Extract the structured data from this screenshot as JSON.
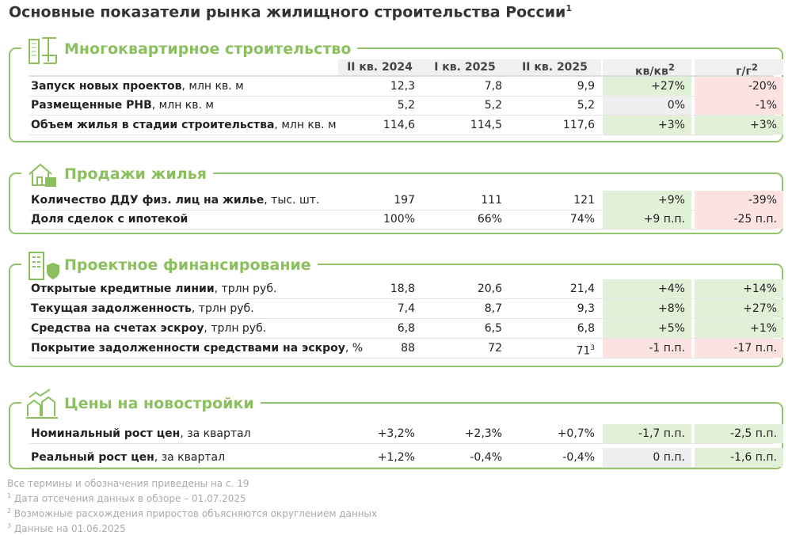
{
  "title": "Основные показатели рынка жилищного строительства России",
  "title_sup": "1",
  "columns": [
    "II кв. 2024",
    "I кв. 2025",
    "II кв. 2025",
    "кв/кв",
    "г/г"
  ],
  "col_sup": "2",
  "sections": [
    {
      "title": "Многоквартирное строительство",
      "icon": "building-crane-icon",
      "rows": [
        {
          "label": "Запуск новых проектов",
          "unit": ", млн кв. м",
          "v": [
            "12,3",
            "7,8",
            "9,9",
            "+27%",
            "-20%"
          ],
          "colors": [
            "green",
            "red"
          ]
        },
        {
          "label": "Размещенные РНВ",
          "unit": ", млн кв. м",
          "v": [
            "5,2",
            "5,2",
            "5,2",
            "0%",
            "-1%"
          ],
          "colors": [
            "gray",
            "red"
          ]
        },
        {
          "label": "Объем жилья в стадии строительства",
          "unit": ", млн кв. м",
          "v": [
            "114,6",
            "114,5",
            "117,6",
            "+3%",
            "+3%"
          ],
          "colors": [
            "green",
            "green"
          ]
        }
      ]
    },
    {
      "title": "Продажи жилья",
      "icon": "house-money-icon",
      "rows": [
        {
          "label": "Количество ДДУ физ. лиц на жилье",
          "unit": ", тыс. шт.",
          "v": [
            "197",
            "111",
            "121",
            "+9%",
            "-39%"
          ],
          "colors": [
            "green",
            "red"
          ]
        },
        {
          "label": "Доля сделок с ипотекой",
          "unit": "",
          "v": [
            "100%",
            "66%",
            "74%",
            "+9 п.п.",
            "-25 п.п."
          ],
          "colors": [
            "green",
            "red"
          ]
        }
      ]
    },
    {
      "title": "Проектное финансирование",
      "icon": "building-shield-icon",
      "rows": [
        {
          "label": "Открытые кредитные линии",
          "unit": ", трлн руб.",
          "v": [
            "18,8",
            "20,6",
            "21,4",
            "+4%",
            "+14%"
          ],
          "colors": [
            "green",
            "green"
          ]
        },
        {
          "label": "Текущая задолженность",
          "unit": ", трлн руб.",
          "v": [
            "7,4",
            "8,7",
            "9,3",
            "+8%",
            "+27%"
          ],
          "colors": [
            "green",
            "green"
          ]
        },
        {
          "label": "Средства на счетах эскроу",
          "unit": ", трлн руб.",
          "v": [
            "6,8",
            "6,5",
            "6,8",
            "+5%",
            "+1%"
          ],
          "colors": [
            "green",
            "green"
          ]
        },
        {
          "label": "Покрытие задолженности средствами на эскроу",
          "unit": ", %",
          "v": [
            "88",
            "72",
            "71",
            "-1 п.п.",
            "-17 п.п."
          ],
          "sup": "3",
          "colors": [
            "red",
            "red"
          ]
        }
      ]
    },
    {
      "title": "Цены на новостройки",
      "icon": "houses-chart-icon",
      "rows": [
        {
          "label": "Номинальный рост цен",
          "unit": ", за квартал",
          "v": [
            "+3,2%",
            "+2,3%",
            "+0,7%",
            "-1,7 п.п.",
            "-2,5 п.п."
          ],
          "colors": [
            "green",
            "green"
          ]
        },
        {
          "label": "Реальный рост цен",
          "unit": ", за квартал",
          "v": [
            "+1,2%",
            "-0,4%",
            "-0,4%",
            "0 п.п.",
            "-1,6 п.п."
          ],
          "colors": [
            "gray",
            "green"
          ]
        }
      ]
    }
  ],
  "footnotes": [
    {
      "sup": "",
      "text": "Все термины и обозначения приведены на с. 19"
    },
    {
      "sup": "1",
      "text": "Дата отсечения данных в обзоре – 01.07.2025"
    },
    {
      "sup": "2",
      "text": "Возможные расхождения приростов объясняются округлением данных"
    },
    {
      "sup": "3",
      "text": "Данные на 01.06.2025"
    }
  ],
  "colors": {
    "accent": "#8cc05f",
    "border": "#93c36b",
    "positive": "#e3f0d8",
    "negative": "#fde2e2",
    "neutral": "#efefef"
  }
}
